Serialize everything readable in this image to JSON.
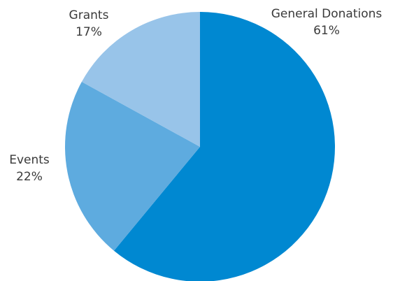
{
  "chart_data": {
    "type": "pie",
    "title": "",
    "start_angle": "12 o'clock",
    "direction": "clockwise",
    "legend": "none",
    "slices": [
      {
        "label": "General Donations",
        "value": 61,
        "display": "61%",
        "color": "#0088d1"
      },
      {
        "label": "Events",
        "value": 22,
        "display": "22%",
        "color": "#5eabdf"
      },
      {
        "label": "Grants",
        "value": 17,
        "display": "17%",
        "color": "#98c4e9"
      }
    ]
  }
}
